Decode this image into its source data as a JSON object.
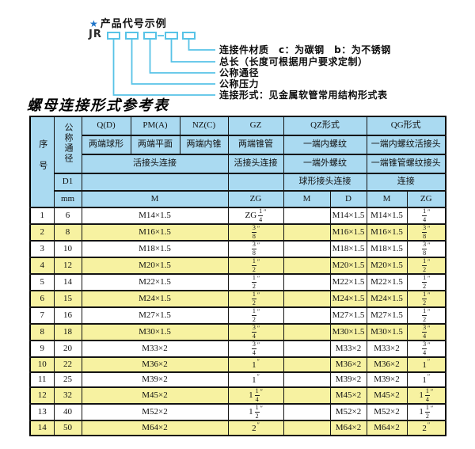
{
  "diagram": {
    "star": "★",
    "heading": "产品代号示例",
    "prefix": "JR",
    "labels": [
      "连接件材质　c：为碳钢　b：为不锈钢",
      "总长（长度可根据用户要求定制）",
      "公称通径",
      "公称压力",
      "连接形式：见金属软管常用结构形式表"
    ]
  },
  "table": {
    "title": "螺母连接形式参考表",
    "header": {
      "serial": "序号",
      "diameter": "公称通径",
      "d1": "D1",
      "mm": "mm",
      "col_q": "Q(D)",
      "col_pm": "PM(A)",
      "col_nz": "NZ(C)",
      "col_gz": "GZ",
      "col_qz": "QZ形式",
      "col_qg": "QG形式",
      "q_desc": "两端球形",
      "pm_desc": "两端平面",
      "nz_desc": "两端内锥",
      "gz_desc": "两端锥管",
      "qz_desc1": "一端内螺纹",
      "qg_desc1": "一端内螺纹活接头",
      "union_conn": "活接头连接",
      "gz_conn": "活接头连接",
      "qz_desc2": "一端外螺纹",
      "qg_desc2": "一端锥管螺纹接头",
      "qz_conn": "球形接头连接",
      "qg_conn": "连接",
      "m_merged": "M",
      "zg_gz": "ZG",
      "m_qz": "M",
      "d_qz": "D",
      "m_qg": "M",
      "zg_qg": "ZG"
    },
    "rows": [
      {
        "no": "1",
        "mm": "6",
        "m": "M14×1.5",
        "zg": "ZG 1/4″",
        "qz_m": "",
        "qz_d": "M14×1.5",
        "qg_m": "M14×1.5",
        "qg_zg": "1/4″"
      },
      {
        "no": "2",
        "mm": "8",
        "m": "M16×1.5",
        "zg": "3/8″",
        "qz_m": "",
        "qz_d": "M16×1.5",
        "qg_m": "M16×1.5",
        "qg_zg": "3/8″"
      },
      {
        "no": "3",
        "mm": "10",
        "m": "M18×1.5",
        "zg": "3/8″",
        "qz_m": "",
        "qz_d": "M18×1.5",
        "qg_m": "M18×1.5",
        "qg_zg": "3/8″"
      },
      {
        "no": "4",
        "mm": "12",
        "m": "M20×1.5",
        "zg": "1/2″",
        "qz_m": "",
        "qz_d": "M20×1.5",
        "qg_m": "M20×1.5",
        "qg_zg": "1/2″"
      },
      {
        "no": "5",
        "mm": "14",
        "m": "M22×1.5",
        "zg": "1/2″",
        "qz_m": "",
        "qz_d": "M22×1.5",
        "qg_m": "M22×1.5",
        "qg_zg": "1/2″"
      },
      {
        "no": "6",
        "mm": "15",
        "m": "M24×1.5",
        "zg": "1/2″",
        "qz_m": "",
        "qz_d": "M24×1.5",
        "qg_m": "M24×1.5",
        "qg_zg": "1/2″"
      },
      {
        "no": "7",
        "mm": "16",
        "m": "M27×1.5",
        "zg": "1/2″",
        "qz_m": "",
        "qz_d": "M27×1.5",
        "qg_m": "M27×1.5",
        "qg_zg": "1/2″"
      },
      {
        "no": "8",
        "mm": "18",
        "m": "M30×1.5",
        "zg": "3/4″",
        "qz_m": "",
        "qz_d": "M30×1.5",
        "qg_m": "M30×1.5",
        "qg_zg": "3/4″"
      },
      {
        "no": "9",
        "mm": "20",
        "m": "M33×2",
        "zg": "3/4″",
        "qz_m": "",
        "qz_d": "M33×2",
        "qg_m": "M33×2",
        "qg_zg": "3/4″"
      },
      {
        "no": "10",
        "mm": "22",
        "m": "M36×2",
        "zg": "1″",
        "qz_m": "",
        "qz_d": "M36×2",
        "qg_m": "M36×2",
        "qg_zg": "1″"
      },
      {
        "no": "11",
        "mm": "25",
        "m": "M39×2",
        "zg": "1″",
        "qz_m": "",
        "qz_d": "M39×2",
        "qg_m": "M39×2",
        "qg_zg": "1″"
      },
      {
        "no": "12",
        "mm": "32",
        "m": "M45×2",
        "zg": "1 1/4″",
        "qz_m": "",
        "qz_d": "M45×2",
        "qg_m": "M45×2",
        "qg_zg": "1 1/4″"
      },
      {
        "no": "13",
        "mm": "40",
        "m": "M52×2",
        "zg": "1 1/2″",
        "qz_m": "",
        "qz_d": "M52×2",
        "qg_m": "M52×2",
        "qg_zg": "1 1/2″"
      },
      {
        "no": "14",
        "mm": "50",
        "m": "M64×2",
        "zg": "2″",
        "qz_m": "",
        "qz_d": "M64×2",
        "qg_m": "M64×2",
        "qg_zg": "2″"
      }
    ]
  },
  "colors": {
    "header_blue": "#aadaf1",
    "row_yellow": "#f7f2a1",
    "row_white": "#ffffff",
    "diagram_cyan": "#58c3e7",
    "star_blue": "#1d74c9",
    "border": "#141414"
  }
}
